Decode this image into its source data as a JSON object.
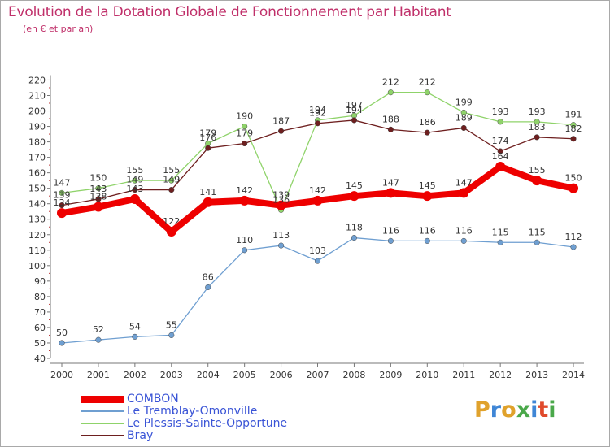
{
  "header": {
    "title": "Evolution de la Dotation Globale de Fonctionnement par Habitant",
    "subtitle": "(en € et par an)"
  },
  "logo": {
    "text": "Proxiti",
    "letters": [
      {
        "ch": "P",
        "color": "#e0a22c"
      },
      {
        "ch": "r",
        "color": "#3f86d6"
      },
      {
        "ch": "o",
        "color": "#e0a22c"
      },
      {
        "ch": "x",
        "color": "#4aa84a"
      },
      {
        "ch": "i",
        "color": "#3f86d6"
      },
      {
        "ch": "t",
        "color": "#e04a2c"
      },
      {
        "ch": "i",
        "color": "#4aa84a"
      }
    ]
  },
  "chart_data": {
    "type": "line",
    "title": "Evolution de la Dotation Globale de Fonctionnement par Habitant",
    "subtitle": "(en € et par an)",
    "x": [
      "2000",
      "2001",
      "2002",
      "2003",
      "2004",
      "2005",
      "2006",
      "2007",
      "2008",
      "2009",
      "2010",
      "2011",
      "2012",
      "2013",
      "2014"
    ],
    "ylim": [
      40,
      220
    ],
    "yticks": [
      40,
      50,
      60,
      70,
      80,
      90,
      100,
      110,
      120,
      130,
      140,
      150,
      160,
      170,
      180,
      190,
      200,
      210,
      220
    ],
    "grid": false,
    "legend_position": "bottom-left",
    "series": [
      {
        "name": "COMBON",
        "color": "#ee0000",
        "values": [
          134,
          138,
          143,
          122,
          141,
          142,
          139,
          142,
          145,
          147,
          145,
          147,
          164,
          155,
          150
        ]
      },
      {
        "name": "Le Tremblay-Omonville",
        "color": "#6f9fd1",
        "values": [
          50,
          52,
          54,
          55,
          86,
          110,
          113,
          103,
          118,
          116,
          116,
          116,
          115,
          115,
          112
        ]
      },
      {
        "name": "Le Plessis-Sainte-Opportune",
        "color": "#8fd36a",
        "values": [
          147,
          150,
          155,
          155,
          179,
          190,
          136,
          194,
          197,
          212,
          212,
          199,
          193,
          193,
          191
        ]
      },
      {
        "name": "Bray",
        "color": "#6e1f1f",
        "values": [
          139,
          143,
          149,
          149,
          176,
          179,
          187,
          192,
          194,
          188,
          186,
          189,
          174,
          183,
          182
        ]
      }
    ]
  }
}
